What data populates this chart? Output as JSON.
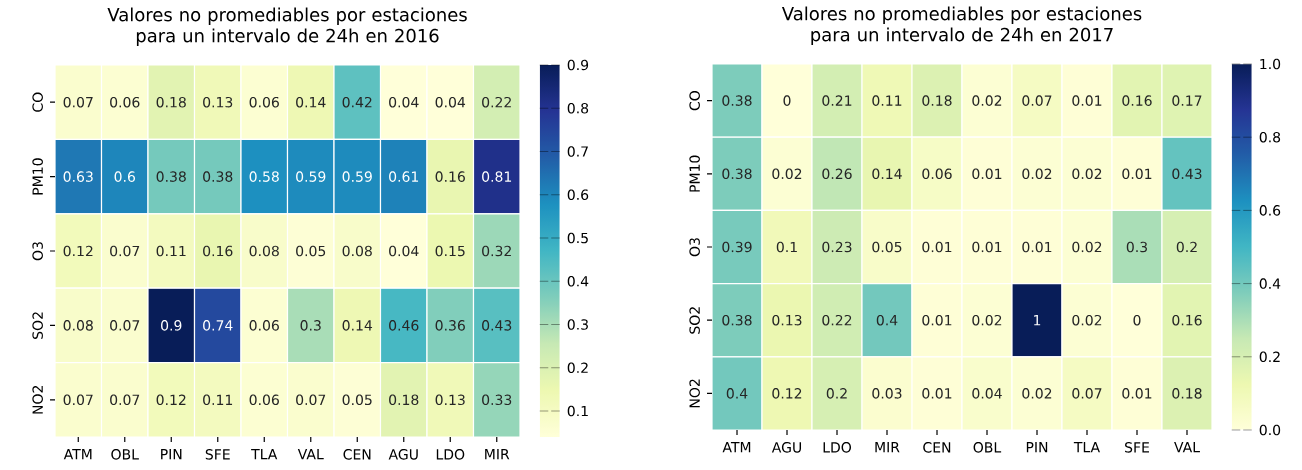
{
  "chart_data": [
    {
      "type": "heatmap",
      "title": "Valores no promediables por estaciones para un intervalo de 24h en 2016",
      "categories": [
        "ATM",
        "OBL",
        "PIN",
        "SFE",
        "TLA",
        "VAL",
        "CEN",
        "AGU",
        "LDO",
        "MIR"
      ],
      "y_categories": [
        "CO",
        "PM10",
        "O3",
        "SO2",
        "NO2"
      ],
      "cells": [
        [
          0.07,
          0.06,
          0.18,
          0.13,
          0.06,
          0.14,
          0.42,
          0.04,
          0.04,
          0.22
        ],
        [
          0.63,
          0.6,
          0.38,
          0.38,
          0.58,
          0.59,
          0.59,
          0.61,
          0.16,
          0.81
        ],
        [
          0.12,
          0.07,
          0.11,
          0.16,
          0.08,
          0.05,
          0.08,
          0.04,
          0.15,
          0.32
        ],
        [
          0.08,
          0.07,
          0.9,
          0.74,
          0.06,
          0.3,
          0.14,
          0.46,
          0.36,
          0.43
        ],
        [
          0.07,
          0.07,
          0.12,
          0.11,
          0.06,
          0.07,
          0.05,
          0.18,
          0.13,
          0.33
        ]
      ],
      "clim": [
        0.04,
        0.9
      ],
      "cticks": [
        0.1,
        0.2,
        0.3,
        0.4,
        0.5,
        0.6,
        0.7,
        0.8,
        0.9
      ],
      "data_labels": true
    },
    {
      "type": "heatmap",
      "title": "Valores no promediables por estaciones para un intervalo de 24h en 2017",
      "categories": [
        "ATM",
        "AGU",
        "LDO",
        "MIR",
        "CEN",
        "OBL",
        "PIN",
        "TLA",
        "SFE",
        "VAL"
      ],
      "y_categories": [
        "CO",
        "PM10",
        "O3",
        "SO2",
        "NO2"
      ],
      "cells": [
        [
          0.38,
          0,
          0.21,
          0.11,
          0.18,
          0.02,
          0.07,
          0.01,
          0.16,
          0.17
        ],
        [
          0.38,
          0.02,
          0.26,
          0.14,
          0.06,
          0.01,
          0.02,
          0.02,
          0.01,
          0.43
        ],
        [
          0.39,
          0.1,
          0.23,
          0.05,
          0.01,
          0.01,
          0.01,
          0.02,
          0.3,
          0.2
        ],
        [
          0.38,
          0.13,
          0.22,
          0.4,
          0.01,
          0.02,
          1,
          0.02,
          0,
          0.16
        ],
        [
          0.4,
          0.12,
          0.2,
          0.03,
          0.01,
          0.04,
          0.02,
          0.07,
          0.01,
          0.18
        ]
      ],
      "clim": [
        0,
        1
      ],
      "cticks": [
        {
          "value": 0,
          "label": "0.0"
        },
        {
          "value": 0.2,
          "label": "0.2"
        },
        {
          "value": 0.4,
          "label": "0.4"
        },
        {
          "value": 0.6,
          "label": "0.6"
        },
        {
          "value": 0.8,
          "label": "0.8"
        },
        {
          "value": 1,
          "label": "1.0"
        }
      ],
      "data_labels": true
    }
  ]
}
